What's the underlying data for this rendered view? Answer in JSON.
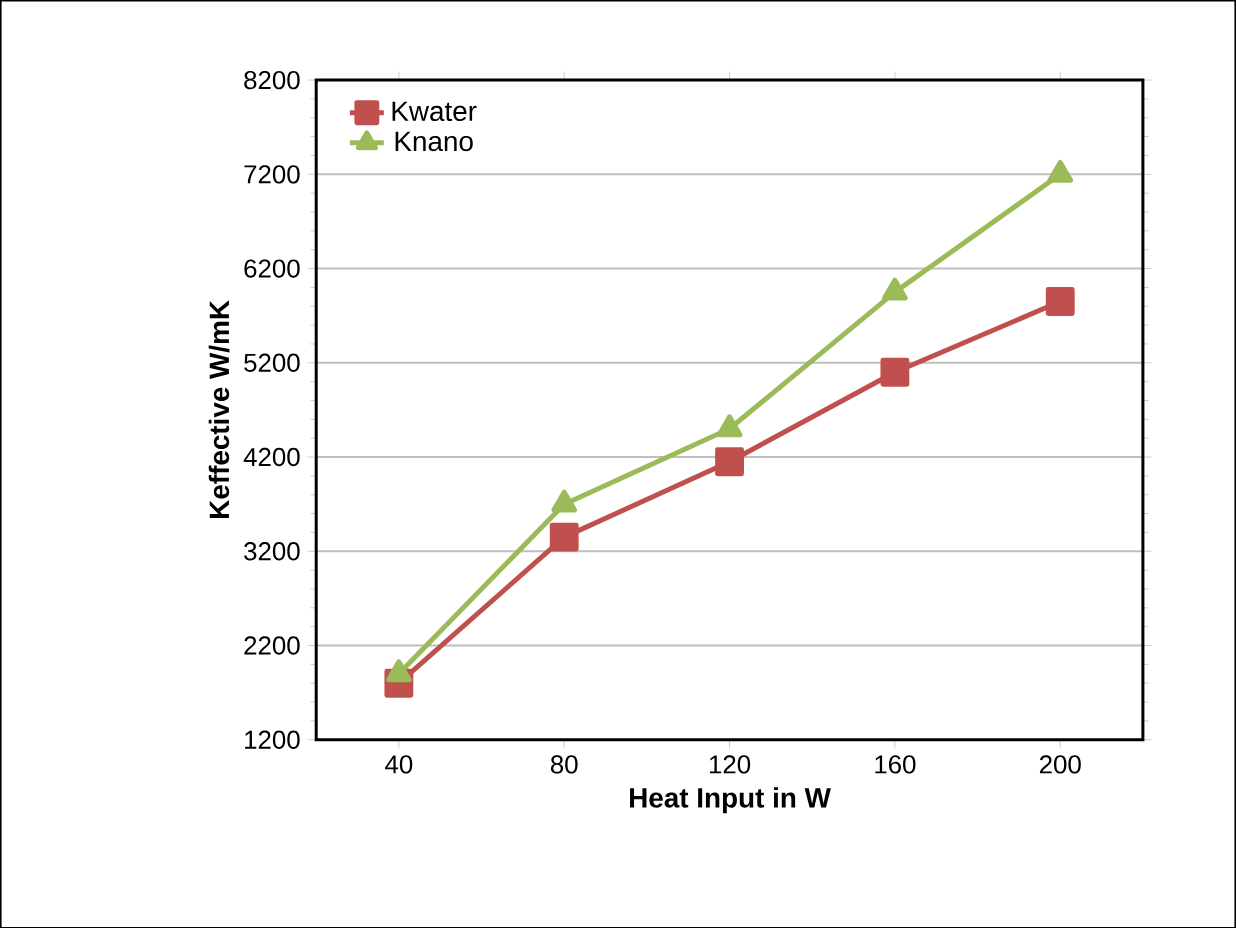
{
  "chart_data": {
    "type": "line",
    "xlabel": "Heat Input in W",
    "ylabel": "Keffective W/mK",
    "categories": [
      "40",
      "80",
      "120",
      "160",
      "200"
    ],
    "series": [
      {
        "name": "Kwater",
        "color": "#c0504d",
        "marker": "square",
        "values": [
          1800,
          3350,
          4150,
          5100,
          5850
        ]
      },
      {
        "name": "Knano",
        "color": "#9bbb59",
        "marker": "triangle",
        "values": [
          1900,
          3700,
          4500,
          5950,
          7200
        ]
      }
    ],
    "ylim": [
      1200,
      8200
    ],
    "yticks": [
      1200,
      2200,
      3200,
      4200,
      5200,
      6200,
      7200,
      8200
    ],
    "grid": "y",
    "legend": "top left"
  }
}
